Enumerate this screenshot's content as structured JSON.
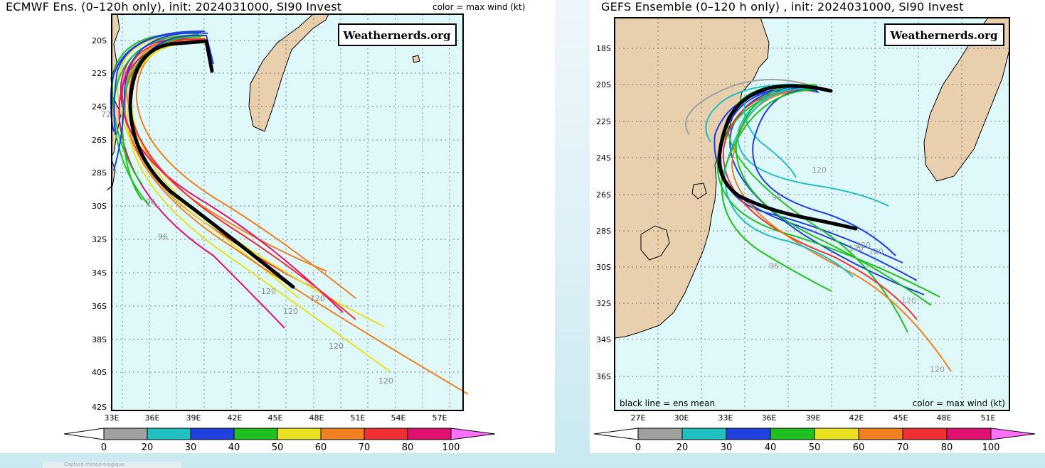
{
  "left_map": {
    "title": "ECMWF Ens. (0–120h only), init: 2024031000, SI90 Invest",
    "color_note": "color = max wind (kt)",
    "watermark": "Weathernerds.org",
    "lon_ticks": [
      "33E",
      "36E",
      "39E",
      "42E",
      "45E",
      "48E",
      "51E",
      "54E",
      "57E"
    ],
    "lat_ticks": [
      "20S",
      "22S",
      "24S",
      "26S",
      "28S",
      "30S",
      "32S",
      "34S",
      "36S",
      "38S",
      "40S",
      "42S"
    ],
    "hour_labels": [
      "72",
      "96",
      "96",
      "120",
      "120",
      "120",
      "120",
      "120"
    ],
    "colorbar_labels": [
      "0",
      "20",
      "30",
      "40",
      "50",
      "60",
      "70",
      "80",
      "100"
    ]
  },
  "right_map": {
    "title": "GEFS Ensemble (0–120 h only) , init: 2024031000, SI90 Invest",
    "watermark": "Weathernerds.org",
    "legend_left": "black line = ens mean",
    "legend_right": "color = max wind (kt)",
    "lon_ticks": [
      "27E",
      "30E",
      "33E",
      "36E",
      "39E",
      "42E",
      "45E",
      "48E",
      "51E"
    ],
    "lat_ticks": [
      "18S",
      "20S",
      "22S",
      "24S",
      "26S",
      "28S",
      "30S",
      "32S",
      "34S",
      "36S"
    ],
    "hour_labels": [
      "120",
      "96",
      "120",
      "120",
      "120",
      "96",
      "120",
      "120"
    ],
    "colorbar_labels": [
      "0",
      "20",
      "30",
      "40",
      "50",
      "60",
      "70",
      "80",
      "100"
    ]
  },
  "colorbar_colors": [
    "#ffffff",
    "#a0a0a0",
    "#20c0c0",
    "#2040e0",
    "#20c020",
    "#e8e020",
    "#f08020",
    "#f03030",
    "#e01070",
    "#ff70ff"
  ],
  "colors": {
    "ocean": "#dff8fa",
    "land": "#e8cfae",
    "mean_track": "#000000"
  },
  "caption": "Capture meteorologique"
}
